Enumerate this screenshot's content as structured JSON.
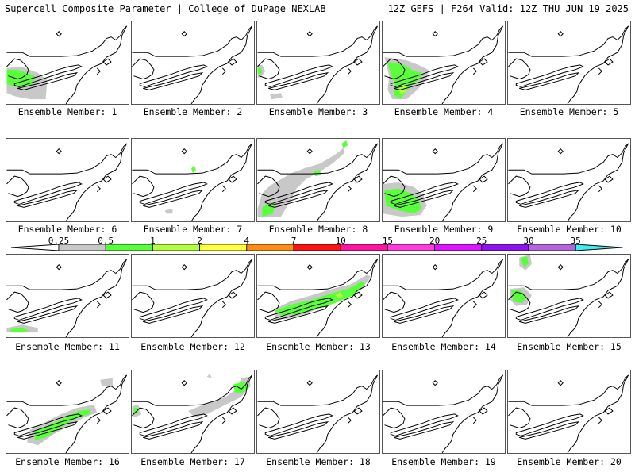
{
  "header": {
    "title_left": "Supercell Composite Parameter | College of DuPage NEXLAB",
    "title_right": "12Z GEFS | F264 Valid: 12Z THU JUN 19 2025"
  },
  "colorbar": {
    "labels": [
      "0.25",
      "0.5",
      "1",
      "2",
      "4",
      "7",
      "10",
      "15",
      "20",
      "25",
      "30",
      "35"
    ],
    "colors": [
      "#c8c8c8",
      "#5aff3c",
      "#b4ff3c",
      "#ffff3c",
      "#ff8c14",
      "#ff1414",
      "#ff14a0",
      "#ff3cdc",
      "#dc14ff",
      "#8c14f0",
      "#b464dc",
      "#3cf0f0"
    ]
  },
  "members": [
    {
      "label": "Ensemble Member: 1"
    },
    {
      "label": "Ensemble Member: 2"
    },
    {
      "label": "Ensemble Member: 3"
    },
    {
      "label": "Ensemble Member: 4"
    },
    {
      "label": "Ensemble Member: 5"
    },
    {
      "label": "Ensemble Member: 6"
    },
    {
      "label": "Ensemble Member: 7"
    },
    {
      "label": "Ensemble Member: 8"
    },
    {
      "label": "Ensemble Member: 9"
    },
    {
      "label": "Ensemble Member: 10"
    },
    {
      "label": "Ensemble Member: 11"
    },
    {
      "label": "Ensemble Member: 12"
    },
    {
      "label": "Ensemble Member: 13"
    },
    {
      "label": "Ensemble Member: 14"
    },
    {
      "label": "Ensemble Member: 15"
    },
    {
      "label": "Ensemble Member: 16"
    },
    {
      "label": "Ensemble Member: 17"
    },
    {
      "label": "Ensemble Member: 18"
    },
    {
      "label": "Ensemble Member: 19"
    },
    {
      "label": "Ensemble Member: 20"
    }
  ]
}
